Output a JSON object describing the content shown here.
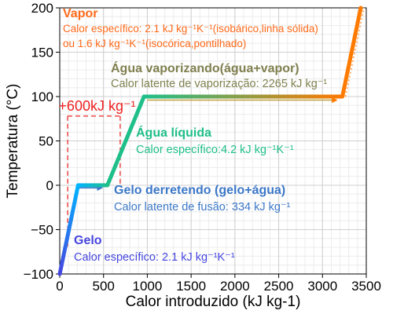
{
  "chart_data": {
    "type": "line",
    "title": "",
    "xlabel": "Calor introduzido (kJ kg-1)",
    "ylabel": "Temperatura (°C)",
    "xlim": [
      0,
      3500
    ],
    "ylim": [
      -100,
      200
    ],
    "x_ticks": [
      0,
      500,
      1000,
      1500,
      2000,
      2500,
      3000,
      3500
    ],
    "y_ticks": [
      -100,
      -50,
      0,
      50,
      100,
      150,
      200
    ],
    "x_tick_labels": [
      "0",
      "500",
      "1000",
      "1500",
      "2000",
      "2500",
      "3000",
      "3500"
    ],
    "y_tick_labels": [
      "−100",
      "−50",
      "0",
      "50",
      "100",
      "150",
      "200"
    ],
    "grid": true,
    "series": [
      {
        "color": "#4646e0",
        "gradient_to": "#00b4ff",
        "points": [
          [
            0,
            -100
          ],
          [
            210,
            0
          ]
        ]
      },
      {
        "color": "#00b4ff",
        "gradient_to": "#1fbf8a",
        "points": [
          [
            210,
            0
          ],
          [
            544,
            0
          ]
        ]
      },
      {
        "color": "#1fbf8a",
        "points": [
          [
            544,
            0
          ],
          [
            962,
            100
          ]
        ]
      },
      {
        "color": "#1fbf8a",
        "gradient_to": "#ff7a00",
        "points": [
          [
            962,
            100
          ],
          [
            3227,
            100
          ]
        ]
      },
      {
        "color": "#ff7a00",
        "points": [
          [
            3227,
            100
          ],
          [
            3437,
            200
          ]
        ]
      }
    ],
    "arrows": [
      {
        "color": "#3c78c8",
        "points": [
          [
            220,
            -3
          ],
          [
            480,
            -3
          ]
        ]
      },
      {
        "color": "#3c78c8",
        "points": [
          [
            1000,
            96
          ],
          [
            3160,
            96
          ]
        ]
      }
    ],
    "annotations": [
      {
        "title": "Vapor",
        "title_color": "#ff6a1a",
        "lines": [
          "Calor específico: 2.1 kJ kg⁻¹K⁻¹(isobárico,linha sólida)",
          "ou 1.6 kJ kg⁻¹K⁻¹(isocórica,pontilhado)"
        ],
        "text_color": "#ff6a1a"
      },
      {
        "title": "Água vaporizando(água+vapor)",
        "title_color": "#808050",
        "lines": [
          "Calor latente de vaporização: 2265 kJ kg⁻¹"
        ],
        "text_color": "#808050"
      },
      {
        "title": "Água líquida",
        "title_color": "#1fbf8a",
        "lines": [
          "Calor específico:4.2 kJ kg⁻¹K⁻¹"
        ],
        "text_color": "#1fbf8a"
      },
      {
        "title": "Gelo derretendo (gelo+água)",
        "title_color": "#3c78c8",
        "lines": [
          "Calor latente de fusão: 334 kJ kg⁻¹"
        ],
        "text_color": "#3c78c8"
      },
      {
        "title": "Gelo",
        "title_color": "#4646e0",
        "lines": [
          "Calor específico: 2.1 kJ kg⁻¹K⁻¹"
        ],
        "text_color": "#4646e0"
      }
    ],
    "brace_label": "+600kJ kg⁻¹",
    "brace_color": "#ee2222",
    "brace_range": [
      90,
      690
    ],
    "brace_y": 78
  }
}
